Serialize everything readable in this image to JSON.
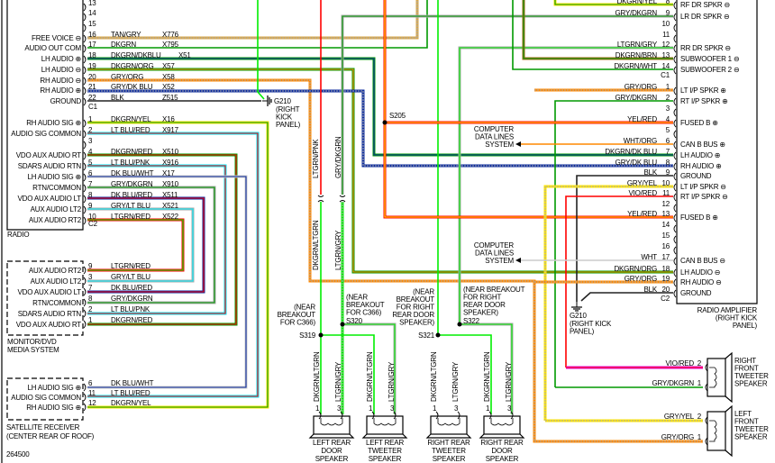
{
  "figure_id": "264500",
  "radio": {
    "label": "RADIO",
    "c1": {
      "connector": "C1",
      "pins": [
        {
          "pin": "13",
          "func": "",
          "wire": "",
          "circuit": ""
        },
        {
          "pin": "14",
          "func": "",
          "wire": "",
          "circuit": ""
        },
        {
          "pin": "15",
          "func": "",
          "wire": "",
          "circuit": ""
        },
        {
          "pin": "16",
          "func": "FREE VOICE ⊖",
          "wire": "TAN/GRY",
          "circuit": "X776"
        },
        {
          "pin": "17",
          "func": "AUDIO OUT COM",
          "wire": "DKGRN",
          "circuit": "X795"
        },
        {
          "pin": "18",
          "func": "LH AUDIO ⊕",
          "wire": "DKGRN/DKBLU",
          "circuit": "X51"
        },
        {
          "pin": "19",
          "func": "LH AUDIO ⊖",
          "wire": "DKGRN/ORG",
          "circuit": "X57"
        },
        {
          "pin": "20",
          "func": "RH AUDIO ⊖",
          "wire": "GRY/ORG",
          "circuit": "X58"
        },
        {
          "pin": "21",
          "func": "RH AUDIO ⊕",
          "wire": "GRY/DK BLU",
          "circuit": "X52"
        },
        {
          "pin": "22",
          "func": "GROUND",
          "wire": "BLK",
          "circuit": "Z515"
        }
      ]
    },
    "c2": {
      "connector": "C2",
      "pins": [
        {
          "pin": "1",
          "func": "RH AUDIO SIG ⊕",
          "wire": "DKGRN/YEL",
          "circuit": "X16"
        },
        {
          "pin": "2",
          "func": "AUDIO SIG COMMON",
          "wire": "LT BLU/RED",
          "circuit": "X917"
        },
        {
          "pin": "3",
          "func": "",
          "wire": "",
          "circuit": ""
        },
        {
          "pin": "4",
          "func": "VDO AUX AUDIO RT",
          "wire": "DKGRN/RED",
          "circuit": "X510"
        },
        {
          "pin": "5",
          "func": "SDARS AUDIO RTN",
          "wire": "LT BLU/PNK",
          "circuit": "X916"
        },
        {
          "pin": "6",
          "func": "LH AUDIO SIG ⊕",
          "wire": "DK BLU/WHT",
          "circuit": "X17"
        },
        {
          "pin": "7",
          "func": "RTN/COMMON",
          "wire": "GRY/DKGRN",
          "circuit": "X910"
        },
        {
          "pin": "8",
          "func": "VDO AUX AUDIO LT",
          "wire": "DK BLU/RED",
          "circuit": "X511"
        },
        {
          "pin": "9",
          "func": "AUX AUDIO LT2",
          "wire": "GRY/LT BLU",
          "circuit": "X521"
        },
        {
          "pin": "10",
          "func": "AUX AUDIO RT2",
          "wire": "LTGRN/RED",
          "circuit": "X522"
        }
      ]
    }
  },
  "g210_radio": {
    "id": "G210",
    "lines": [
      "(RIGHT",
      "KICK",
      "PANEL)"
    ]
  },
  "monitor": {
    "label": [
      "MONITOR/DVD",
      "MEDIA SYSTEM"
    ],
    "pins": [
      {
        "pin": "9",
        "func": "AUX AUDIO RT2",
        "wire": "LTGRN/RED"
      },
      {
        "pin": "3",
        "func": "AUX AUDIO LT2",
        "wire": "GRY/LT BLU"
      },
      {
        "pin": "7",
        "func": "VDO AUX AUDIO LT",
        "wire": "DK BLU/RED"
      },
      {
        "pin": "8",
        "func": "RTN/COMMON",
        "wire": "GRY/DKGRN"
      },
      {
        "pin": "2",
        "func": "SDARS AUDIO RTN",
        "wire": "LT BLU/PNK"
      },
      {
        "pin": "1",
        "func": "VDO AUX AUDIO RT",
        "wire": "DKGRN/RED"
      }
    ]
  },
  "satellite": {
    "label": [
      "SATELLITE RECEIVER",
      "(CENTER REAR OF ROOF)"
    ],
    "pins": [
      {
        "pin": "6",
        "func": "LH AUDIO SIG ⊕",
        "wire": "DK BLU/WHT"
      },
      {
        "pin": "11",
        "func": "AUDIO SIG COMMON",
        "wire": "LT BLU/RED"
      },
      {
        "pin": "12",
        "func": "RH AUDIO SIG ⊕",
        "wire": "DKGRN/YEL"
      }
    ]
  },
  "amplifier": {
    "label": [
      "RADIO AMPLIFIER",
      "(RIGHT KICK",
      "PANEL)"
    ],
    "c1": {
      "connector": "C1",
      "pins": [
        {
          "pin": "8",
          "func": "RF DR SPKR ⊖",
          "wire": "DKGRN/YEL"
        },
        {
          "pin": "9",
          "func": "LR DR SPKR ⊖",
          "wire": "GRY/DKGRN"
        },
        {
          "pin": "10",
          "func": "",
          "wire": ""
        },
        {
          "pin": "11",
          "func": "",
          "wire": ""
        },
        {
          "pin": "12",
          "func": "RR DR SPKR ⊖",
          "wire": "LTGRN/GRY"
        },
        {
          "pin": "13",
          "func": "SUBWOOFER 1 ⊖",
          "wire": "DKGRN/BRN"
        },
        {
          "pin": "14",
          "func": "SUBWOOFER 2 ⊖",
          "wire": "DKGRN/WHT"
        }
      ]
    },
    "c2": {
      "connector": "C2",
      "pins": [
        {
          "pin": "1",
          "func": "LT I/P SPKR ⊕",
          "wire": "GRY/ORG"
        },
        {
          "pin": "2",
          "func": "RT I/P SPKR ⊕",
          "wire": "GRY/DKGRN"
        },
        {
          "pin": "3",
          "func": "",
          "wire": ""
        },
        {
          "pin": "4",
          "func": "FUSED B ⊕",
          "wire": "YEL/RED"
        },
        {
          "pin": "5",
          "func": "",
          "wire": ""
        },
        {
          "pin": "6",
          "func": "CAN B BUS ⊕",
          "wire": "WHT/ORG"
        },
        {
          "pin": "7",
          "func": "LH AUDIO ⊕",
          "wire": "DKGRN/DK BLU"
        },
        {
          "pin": "8",
          "func": "RH AUDIO ⊕",
          "wire": "GRY/DK BLU"
        },
        {
          "pin": "9",
          "func": "GROUND",
          "wire": "BLK"
        },
        {
          "pin": "10",
          "func": "LT I/P SPKR ⊖",
          "wire": "GRY/YEL"
        },
        {
          "pin": "11",
          "func": "RT I/P SPKR ⊖",
          "wire": "VIO/RED"
        },
        {
          "pin": "12",
          "func": "",
          "wire": ""
        },
        {
          "pin": "13",
          "func": "FUSED B ⊕",
          "wire": "YEL/RED"
        },
        {
          "pin": "14",
          "func": "",
          "wire": ""
        },
        {
          "pin": "15",
          "func": "",
          "wire": ""
        },
        {
          "pin": "16",
          "func": "",
          "wire": ""
        },
        {
          "pin": "17",
          "func": "CAN B BUS ⊖",
          "wire": "WHT"
        },
        {
          "pin": "18",
          "func": "LH AUDIO ⊖",
          "wire": "DKGRN/ORG"
        },
        {
          "pin": "19",
          "func": "RH AUDIO ⊖",
          "wire": "GRY/ORG"
        },
        {
          "pin": "20",
          "func": "GROUND",
          "wire": "BLK"
        }
      ]
    }
  },
  "g210_amp": {
    "id": "G210",
    "lines": [
      "(RIGHT KICK",
      "PANEL)"
    ]
  },
  "splice_s205": "S205",
  "computer_data_lines": [
    "COMPUTER",
    "DATA LINES",
    "SYSTEM"
  ],
  "vertical_wires": {
    "upper_left": "LTGRN/PNK",
    "upper_right": "GRY/DKGRN",
    "lower_left": "DKGRN/LTGRN",
    "lower_right": "LTGRN/GRY"
  },
  "splices": [
    {
      "id": "S319",
      "note": [
        "(NEAR",
        "BREAKOUT",
        "FOR C366)"
      ]
    },
    {
      "id": "S320",
      "note": [
        "(NEAR",
        "BREAKOUT",
        "FOR C366)"
      ]
    },
    {
      "id": "S321",
      "note": [
        "(NEAR",
        "BREAKOUT",
        "FOR RIGHT",
        "REAR DOOR",
        "SPEAKER)"
      ]
    },
    {
      "id": "S322",
      "note": [
        "(NEAR BREAKOUT",
        "FOR RIGHT",
        "REAR DOOR",
        "SPEAKER)"
      ]
    }
  ],
  "rear_speakers": [
    {
      "name": [
        "LEFT REAR",
        "DOOR",
        "SPEAKER"
      ],
      "pin_a": "1",
      "pin_b": "3",
      "wire_a": "DKGRN/LTGRN",
      "wire_b": "LTGRN/GRY"
    },
    {
      "name": [
        "LEFT REAR",
        "TWEETER",
        "SPEAKER"
      ],
      "pin_a": "1",
      "pin_b": "3",
      "wire_a": "DKGRN/LTGRN",
      "wire_b": "LTGRN/GRY"
    },
    {
      "name": [
        "RIGHT REAR",
        "TWEETER",
        "SPEAKER"
      ],
      "pin_a": "1",
      "pin_b": "3",
      "wire_a": "DKGRN/LTGRN",
      "wire_b": "LTGRN/GRY"
    },
    {
      "name": [
        "RIGHT REAR",
        "DOOR",
        "SPEAKER"
      ],
      "pin_a": "1",
      "pin_b": "3",
      "wire_a": "DKGRN/LTGRN",
      "wire_b": "LTGRN/GRY"
    }
  ],
  "front_tweeters": [
    {
      "name": [
        "RIGHT",
        "FRONT",
        "TWEETER",
        "SPEAKER"
      ],
      "pins": [
        {
          "pin": "2",
          "wire": "VIO/RED"
        },
        {
          "pin": "1",
          "wire": "GRY/DKGRN"
        }
      ]
    },
    {
      "name": [
        "LEFT",
        "FRONT",
        "TWEETER",
        "SPEAKER"
      ],
      "pins": [
        {
          "pin": "2",
          "wire": "GRY/YEL"
        },
        {
          "pin": "1",
          "wire": "GRY/ORG"
        }
      ]
    }
  ],
  "wire_colors": {
    "DKGRN": "#009900",
    "LTGRN": "#00ee00",
    "YEL": "#ffe600",
    "RED": "#ff0000",
    "LTBLU": "#00eeff",
    "DKBLU": "#0a2a9e",
    "GRY": "#aaaaaa",
    "ORG": "#ff8800",
    "TAN": "#d9a84a",
    "PNK": "#ff66cc",
    "VIO": "#e000e0",
    "WHT": "#cccccc",
    "BLK": "#222222",
    "BRN": "#a06a10"
  }
}
